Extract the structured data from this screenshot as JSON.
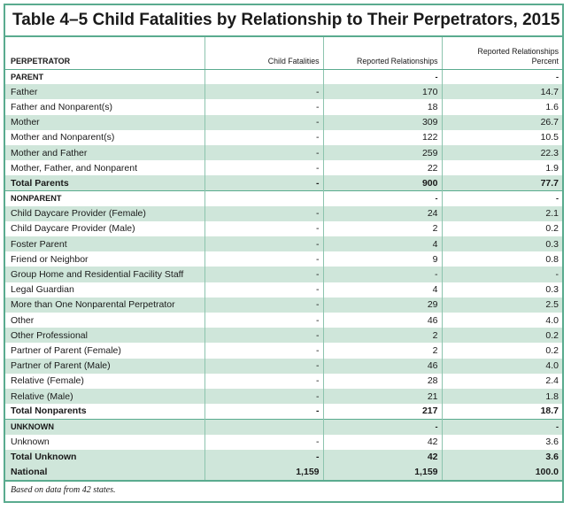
{
  "title": "Table 4–5 Child Fatalities by Relationship to Their Perpetrators, 2015",
  "columns": {
    "perpetrator": "PERPETRATOR",
    "fatalities": "Child Fatalities",
    "relationships": "Reported Relationships",
    "percent_line1": "Reported Relationships",
    "percent_line2": "Percent"
  },
  "rows": [
    {
      "label": "PARENT",
      "fatalities": "",
      "relationships": "-",
      "percent": "-",
      "kind": "section"
    },
    {
      "label": "Father",
      "fatalities": "-",
      "relationships": "170",
      "percent": "14.7",
      "kind": "row"
    },
    {
      "label": "Father and Nonparent(s)",
      "fatalities": "-",
      "relationships": "18",
      "percent": "1.6",
      "kind": "row"
    },
    {
      "label": "Mother",
      "fatalities": "-",
      "relationships": "309",
      "percent": "26.7",
      "kind": "row"
    },
    {
      "label": "Mother and Nonparent(s)",
      "fatalities": "-",
      "relationships": "122",
      "percent": "10.5",
      "kind": "row"
    },
    {
      "label": "Mother and Father",
      "fatalities": "-",
      "relationships": "259",
      "percent": "22.3",
      "kind": "row"
    },
    {
      "label": "Mother, Father, and Nonparent",
      "fatalities": "-",
      "relationships": "22",
      "percent": "1.9",
      "kind": "row"
    },
    {
      "label": "Total Parents",
      "fatalities": "-",
      "relationships": "900",
      "percent": "77.7",
      "kind": "total"
    },
    {
      "label": "NONPARENT",
      "fatalities": "",
      "relationships": "-",
      "percent": "-",
      "kind": "section"
    },
    {
      "label": "Child Daycare Provider (Female)",
      "fatalities": "-",
      "relationships": "24",
      "percent": "2.1",
      "kind": "row"
    },
    {
      "label": "Child Daycare Provider (Male)",
      "fatalities": "-",
      "relationships": "2",
      "percent": "0.2",
      "kind": "row"
    },
    {
      "label": "Foster Parent",
      "fatalities": "-",
      "relationships": "4",
      "percent": "0.3",
      "kind": "row"
    },
    {
      "label": "Friend or Neighbor",
      "fatalities": "-",
      "relationships": "9",
      "percent": "0.8",
      "kind": "row"
    },
    {
      "label": "Group Home and Residential Facility Staff",
      "fatalities": "-",
      "relationships": "-",
      "percent": "-",
      "kind": "row"
    },
    {
      "label": "Legal Guardian",
      "fatalities": "-",
      "relationships": "4",
      "percent": "0.3",
      "kind": "row"
    },
    {
      "label": "More than One Nonparental Perpetrator",
      "fatalities": "-",
      "relationships": "29",
      "percent": "2.5",
      "kind": "row"
    },
    {
      "label": "Other",
      "fatalities": "-",
      "relationships": "46",
      "percent": "4.0",
      "kind": "row"
    },
    {
      "label": "Other Professional",
      "fatalities": "-",
      "relationships": "2",
      "percent": "0.2",
      "kind": "row"
    },
    {
      "label": "Partner of Parent (Female)",
      "fatalities": "-",
      "relationships": "2",
      "percent": "0.2",
      "kind": "row"
    },
    {
      "label": "Partner of Parent (Male)",
      "fatalities": "-",
      "relationships": "46",
      "percent": "4.0",
      "kind": "row"
    },
    {
      "label": "Relative (Female)",
      "fatalities": "-",
      "relationships": "28",
      "percent": "2.4",
      "kind": "row"
    },
    {
      "label": "Relative (Male)",
      "fatalities": "-",
      "relationships": "21",
      "percent": "1.8",
      "kind": "row"
    },
    {
      "label": "Total Nonparents",
      "fatalities": "-",
      "relationships": "217",
      "percent": "18.7",
      "kind": "total"
    },
    {
      "label": "UNKNOWN",
      "fatalities": "",
      "relationships": "-",
      "percent": "-",
      "kind": "section"
    },
    {
      "label": "Unknown",
      "fatalities": "-",
      "relationships": "42",
      "percent": "3.6",
      "kind": "row"
    },
    {
      "label": "Total Unknown",
      "fatalities": "-",
      "relationships": "42",
      "percent": "3.6",
      "kind": "total"
    },
    {
      "label": "National",
      "fatalities": "1,159",
      "relationships": "1,159",
      "percent": "100.0",
      "kind": "total"
    }
  ],
  "footnote": "Based on data from 42 states.",
  "colors": {
    "border": "#5aab8f",
    "shade": "#cfe6da"
  }
}
